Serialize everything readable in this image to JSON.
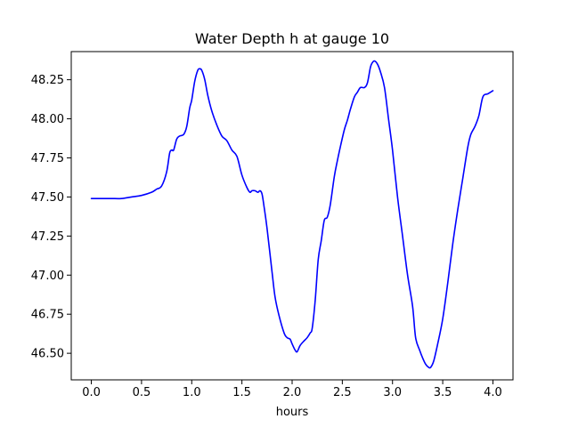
{
  "chart_data": {
    "type": "line",
    "title": "Water Depth h at gauge 10",
    "xlabel": "hours",
    "ylabel": "",
    "xlim": [
      -0.2,
      4.2
    ],
    "ylim": [
      46.33,
      48.43
    ],
    "x_ticks": [
      0.0,
      0.5,
      1.0,
      1.5,
      2.0,
      2.5,
      3.0,
      3.5,
      4.0
    ],
    "x_tick_labels": [
      "0.0",
      "0.5",
      "1.0",
      "1.5",
      "2.0",
      "2.5",
      "3.0",
      "3.5",
      "4.0"
    ],
    "y_ticks": [
      46.5,
      46.75,
      47.0,
      47.25,
      47.5,
      47.75,
      48.0,
      48.25
    ],
    "y_tick_labels": [
      "46.50",
      "46.75",
      "47.00",
      "47.25",
      "47.50",
      "47.75",
      "48.00",
      "48.25"
    ],
    "grid": false,
    "legend": "none",
    "series": [
      {
        "color": "#0000ff",
        "x": [
          0.0,
          0.1,
          0.2,
          0.3,
          0.4,
          0.5,
          0.6,
          0.65,
          0.7,
          0.75,
          0.78,
          0.8,
          0.82,
          0.85,
          0.88,
          0.92,
          0.95,
          0.98,
          1.0,
          1.03,
          1.06,
          1.08,
          1.1,
          1.13,
          1.16,
          1.2,
          1.25,
          1.3,
          1.35,
          1.4,
          1.45,
          1.5,
          1.55,
          1.58,
          1.6,
          1.63,
          1.66,
          1.68,
          1.7,
          1.72,
          1.75,
          1.8,
          1.83,
          1.87,
          1.92,
          1.95,
          1.98,
          2.0,
          2.03,
          2.05,
          2.08,
          2.12,
          2.15,
          2.18,
          2.2,
          2.23,
          2.26,
          2.29,
          2.32,
          2.35,
          2.38,
          2.42,
          2.45,
          2.48,
          2.52,
          2.55,
          2.58,
          2.62,
          2.65,
          2.68,
          2.72,
          2.75,
          2.78,
          2.8,
          2.82,
          2.85,
          2.88,
          2.92,
          2.96,
          3.0,
          3.05,
          3.1,
          3.15,
          3.2,
          3.23,
          3.27,
          3.3,
          3.33,
          3.36,
          3.38,
          3.41,
          3.45,
          3.5,
          3.55,
          3.6,
          3.65,
          3.7,
          3.75,
          3.78,
          3.82,
          3.86,
          3.9,
          3.95,
          4.0
        ],
        "y": [
          47.49,
          47.49,
          47.49,
          47.49,
          47.5,
          47.51,
          47.53,
          47.55,
          47.57,
          47.66,
          47.78,
          47.8,
          47.8,
          47.87,
          47.89,
          47.9,
          47.95,
          48.07,
          48.12,
          48.24,
          48.31,
          48.32,
          48.31,
          48.25,
          48.15,
          48.05,
          47.96,
          47.89,
          47.86,
          47.8,
          47.76,
          47.64,
          47.56,
          47.53,
          47.54,
          47.54,
          47.53,
          47.54,
          47.52,
          47.44,
          47.3,
          47.02,
          46.86,
          46.74,
          46.63,
          46.6,
          46.59,
          46.56,
          46.52,
          46.51,
          46.55,
          46.58,
          46.6,
          46.63,
          46.66,
          46.84,
          47.1,
          47.22,
          47.35,
          47.37,
          47.45,
          47.63,
          47.73,
          47.82,
          47.93,
          47.99,
          48.06,
          48.14,
          48.17,
          48.2,
          48.2,
          48.23,
          48.33,
          48.36,
          48.37,
          48.35,
          48.3,
          48.2,
          48.0,
          47.8,
          47.5,
          47.25,
          47.0,
          46.8,
          46.6,
          46.52,
          46.47,
          46.43,
          46.41,
          46.41,
          46.45,
          46.56,
          46.72,
          46.95,
          47.2,
          47.42,
          47.62,
          47.82,
          47.9,
          47.95,
          48.02,
          48.14,
          48.16,
          48.18
        ]
      }
    ]
  }
}
